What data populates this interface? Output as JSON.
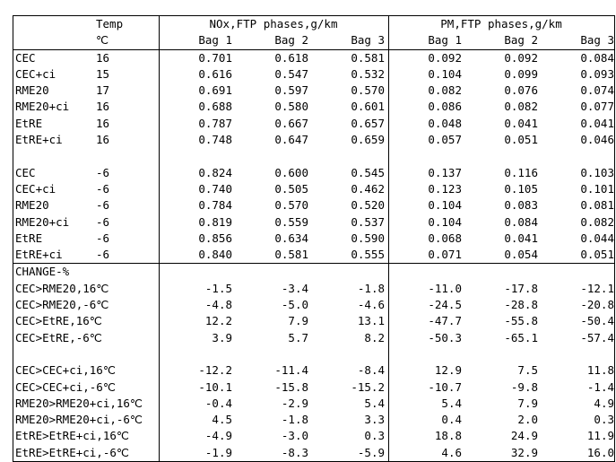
{
  "header": {
    "temp_label": "Temp",
    "temp_unit": "℃",
    "nox_group": "NOx,FTP phases,g/km",
    "pm_group": "PM,FTP phases,g/km",
    "bags": [
      "Bag 1",
      "Bag 2",
      "Bag 3"
    ]
  },
  "warm_rows": [
    {
      "label": "CEC",
      "temp": "16",
      "nox": [
        "0.701",
        "0.618",
        "0.581"
      ],
      "pm": [
        "0.092",
        "0.092",
        "0.084"
      ]
    },
    {
      "label": "CEC+ci",
      "temp": "15",
      "nox": [
        "0.616",
        "0.547",
        "0.532"
      ],
      "pm": [
        "0.104",
        "0.099",
        "0.093"
      ]
    },
    {
      "label": "RME20",
      "temp": "17",
      "nox": [
        "0.691",
        "0.597",
        "0.570"
      ],
      "pm": [
        "0.082",
        "0.076",
        "0.074"
      ]
    },
    {
      "label": "RME20+ci",
      "temp": "16",
      "nox": [
        "0.688",
        "0.580",
        "0.601"
      ],
      "pm": [
        "0.086",
        "0.082",
        "0.077"
      ]
    },
    {
      "label": "EtRE",
      "temp": "16",
      "nox": [
        "0.787",
        "0.667",
        "0.657"
      ],
      "pm": [
        "0.048",
        "0.041",
        "0.041"
      ]
    },
    {
      "label": "EtRE+ci",
      "temp": "16",
      "nox": [
        "0.748",
        "0.647",
        "0.659"
      ],
      "pm": [
        "0.057",
        "0.051",
        "0.046"
      ]
    }
  ],
  "cold_rows": [
    {
      "label": "CEC",
      "temp": "-6",
      "nox": [
        "0.824",
        "0.600",
        "0.545"
      ],
      "pm": [
        "0.137",
        "0.116",
        "0.103"
      ]
    },
    {
      "label": "CEC+ci",
      "temp": "-6",
      "nox": [
        "0.740",
        "0.505",
        "0.462"
      ],
      "pm": [
        "0.123",
        "0.105",
        "0.101"
      ]
    },
    {
      "label": "RME20",
      "temp": "-6",
      "nox": [
        "0.784",
        "0.570",
        "0.520"
      ],
      "pm": [
        "0.104",
        "0.083",
        "0.081"
      ]
    },
    {
      "label": "RME20+ci",
      "temp": "-6",
      "nox": [
        "0.819",
        "0.559",
        "0.537"
      ],
      "pm": [
        "0.104",
        "0.084",
        "0.082"
      ]
    },
    {
      "label": "EtRE",
      "temp": "-6",
      "nox": [
        "0.856",
        "0.634",
        "0.590"
      ],
      "pm": [
        "0.068",
        "0.041",
        "0.044"
      ]
    },
    {
      "label": "EtRE+ci",
      "temp": "-6",
      "nox": [
        "0.840",
        "0.581",
        "0.555"
      ],
      "pm": [
        "0.071",
        "0.054",
        "0.051"
      ]
    }
  ],
  "change_title": "CHANGE-%",
  "change_rows_a": [
    {
      "label": "CEC>RME20,16℃",
      "nox": [
        "-1.5",
        "-3.4",
        "-1.8"
      ],
      "pm": [
        "-11.0",
        "-17.8",
        "-12.1"
      ]
    },
    {
      "label": "CEC>RME20,-6℃",
      "nox": [
        "-4.8",
        "-5.0",
        "-4.6"
      ],
      "pm": [
        "-24.5",
        "-28.8",
        "-20.8"
      ]
    },
    {
      "label": "CEC>EtRE,16℃",
      "nox": [
        "12.2",
        "7.9",
        "13.1"
      ],
      "pm": [
        "-47.7",
        "-55.8",
        "-50.4"
      ]
    },
    {
      "label": "CEC>EtRE,-6℃",
      "nox": [
        "3.9",
        "5.7",
        "8.2"
      ],
      "pm": [
        "-50.3",
        "-65.1",
        "-57.4"
      ]
    }
  ],
  "change_rows_b": [
    {
      "label": "CEC>CEC+ci,16℃",
      "nox": [
        "-12.2",
        "-11.4",
        "-8.4"
      ],
      "pm": [
        "12.9",
        "7.5",
        "11.8"
      ]
    },
    {
      "label": "CEC>CEC+ci,-6℃",
      "nox": [
        "-10.1",
        "-15.8",
        "-15.2"
      ],
      "pm": [
        "-10.7",
        "-9.8",
        "-1.4"
      ]
    },
    {
      "label": "RME20>RME20+ci,16℃",
      "nox": [
        "-0.4",
        "-2.9",
        "5.4"
      ],
      "pm": [
        "5.4",
        "7.9",
        "4.9"
      ]
    },
    {
      "label": "RME20>RME20+ci,-6℃",
      "nox": [
        "4.5",
        "-1.8",
        "3.3"
      ],
      "pm": [
        "0.4",
        "2.0",
        "0.3"
      ]
    },
    {
      "label": "EtRE>EtRE+ci,16℃",
      "nox": [
        "-4.9",
        "-3.0",
        "0.3"
      ],
      "pm": [
        "18.8",
        "24.9",
        "11.9"
      ]
    },
    {
      "label": "EtRE>EtRE+ci,-6℃",
      "nox": [
        "-1.9",
        "-8.3",
        "-5.9"
      ],
      "pm": [
        "4.6",
        "32.9",
        "16.0"
      ]
    }
  ]
}
